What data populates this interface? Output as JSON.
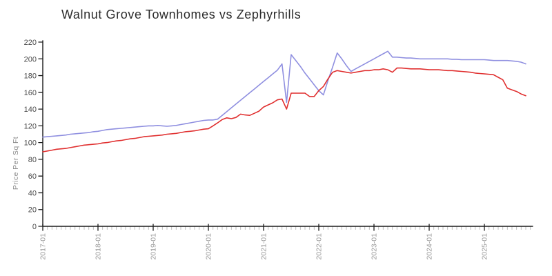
{
  "title": "Walnut Grove Townhomes vs Zephyrhills",
  "chart_data": {
    "type": "line",
    "title": "Walnut Grove Townhomes vs Zephyrhills",
    "xlabel": "",
    "ylabel": "Price Per Sq Ft",
    "ylim": [
      0,
      220
    ],
    "y_ticks": [
      0,
      20,
      40,
      60,
      80,
      100,
      120,
      140,
      160,
      180,
      200,
      220
    ],
    "x_tick_labels": [
      "2017-01",
      "2018-01",
      "2019-01",
      "2020-01",
      "2021-01",
      "2022-01",
      "2023-01",
      "2024-01",
      "2025-01"
    ],
    "x_start": "2017-01",
    "x_end": "2025-10",
    "x_minor_interval": "month",
    "grid": false,
    "legend_position": "none",
    "colors": {
      "axis": "#1a1a1a",
      "minor_tick": "#bdbdbd",
      "y_tick_label": "#4a4a4a",
      "x_tick_label": "#9a9a9a",
      "ylabel": "#8a8a8a",
      "title": "#2b2b2b"
    },
    "series": [
      {
        "name": "Walnut Grove Townhomes",
        "color": "#8f8fe0",
        "values": [
          106.5,
          107,
          107.5,
          108,
          108.5,
          109,
          110,
          110.5,
          111,
          111.5,
          112,
          113,
          113.5,
          114.5,
          115.5,
          116,
          116.5,
          117,
          117.5,
          118,
          118.5,
          119,
          119.5,
          120,
          120,
          120.5,
          120,
          119.5,
          120,
          120.5,
          121.5,
          122.5,
          123.5,
          124.5,
          125.5,
          126.5,
          127,
          127,
          128,
          132.5,
          137,
          141.5,
          146,
          150.5,
          155,
          159.5,
          164,
          168.5,
          173,
          177.5,
          182,
          186.5,
          194,
          148,
          205,
          198,
          191,
          183,
          176,
          169,
          162,
          157,
          174,
          190,
          207,
          200,
          192,
          185,
          188,
          191,
          194,
          197,
          200,
          203,
          206,
          209,
          202,
          202,
          201.5,
          201,
          201,
          200.5,
          200,
          200,
          200,
          200,
          200,
          200,
          200,
          199.5,
          199.5,
          199,
          199,
          199,
          199,
          199,
          199,
          198.5,
          198,
          198,
          198,
          198,
          197.5,
          197,
          196,
          194
        ]
      },
      {
        "name": "Zephyrhills",
        "color": "#e02f2f",
        "values": [
          89,
          90,
          91,
          92,
          92.5,
          93,
          94,
          95,
          96,
          97,
          97.5,
          98,
          98.5,
          99.5,
          100,
          101,
          102,
          102.5,
          103.5,
          104.5,
          105,
          106,
          107,
          107.5,
          108,
          108.5,
          109,
          110,
          110.5,
          111,
          112,
          113,
          113.5,
          114,
          115,
          116,
          116.5,
          120,
          123.5,
          127.5,
          129.5,
          128.5,
          130,
          134,
          133,
          132.5,
          135,
          137.5,
          142.5,
          145,
          147.5,
          151,
          152,
          140,
          159,
          159,
          159,
          159,
          155,
          155,
          162,
          167,
          176,
          184,
          186,
          185,
          184,
          183,
          184,
          185,
          186,
          186,
          187,
          187,
          188,
          187,
          184,
          189,
          189,
          188.5,
          188,
          188,
          188,
          187.5,
          187,
          187,
          187,
          186.5,
          186,
          186,
          185.5,
          185,
          184.5,
          184,
          183,
          182.5,
          182,
          181.5,
          181,
          178,
          175,
          165,
          163,
          161,
          158,
          156
        ]
      }
    ]
  }
}
